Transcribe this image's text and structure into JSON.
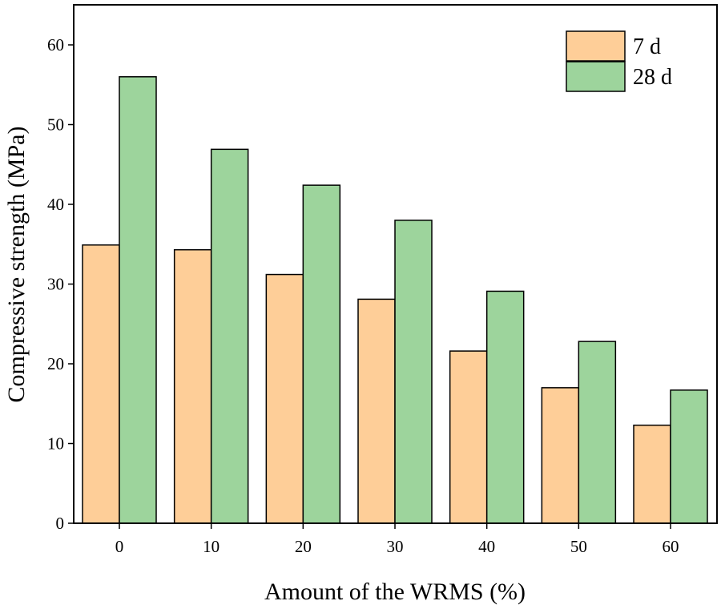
{
  "chart_data": {
    "type": "bar",
    "title": "",
    "xlabel": "Amount of the WRMS (%)",
    "ylabel": "Compressive strength (MPa)",
    "categories": [
      "0",
      "10",
      "20",
      "30",
      "40",
      "50",
      "60"
    ],
    "ylim": [
      0,
      65
    ],
    "yticks": [
      0,
      10,
      20,
      30,
      40,
      50,
      60
    ],
    "grid": false,
    "legend_position": "top-right",
    "series": [
      {
        "name": "7 d",
        "color": "#FECE98",
        "values": [
          34.9,
          34.3,
          31.2,
          28.1,
          21.6,
          17.0,
          12.3
        ]
      },
      {
        "name": "28 d",
        "color": "#9DD49C",
        "values": [
          56.0,
          46.9,
          42.4,
          38.0,
          29.1,
          22.8,
          16.7
        ]
      }
    ]
  }
}
